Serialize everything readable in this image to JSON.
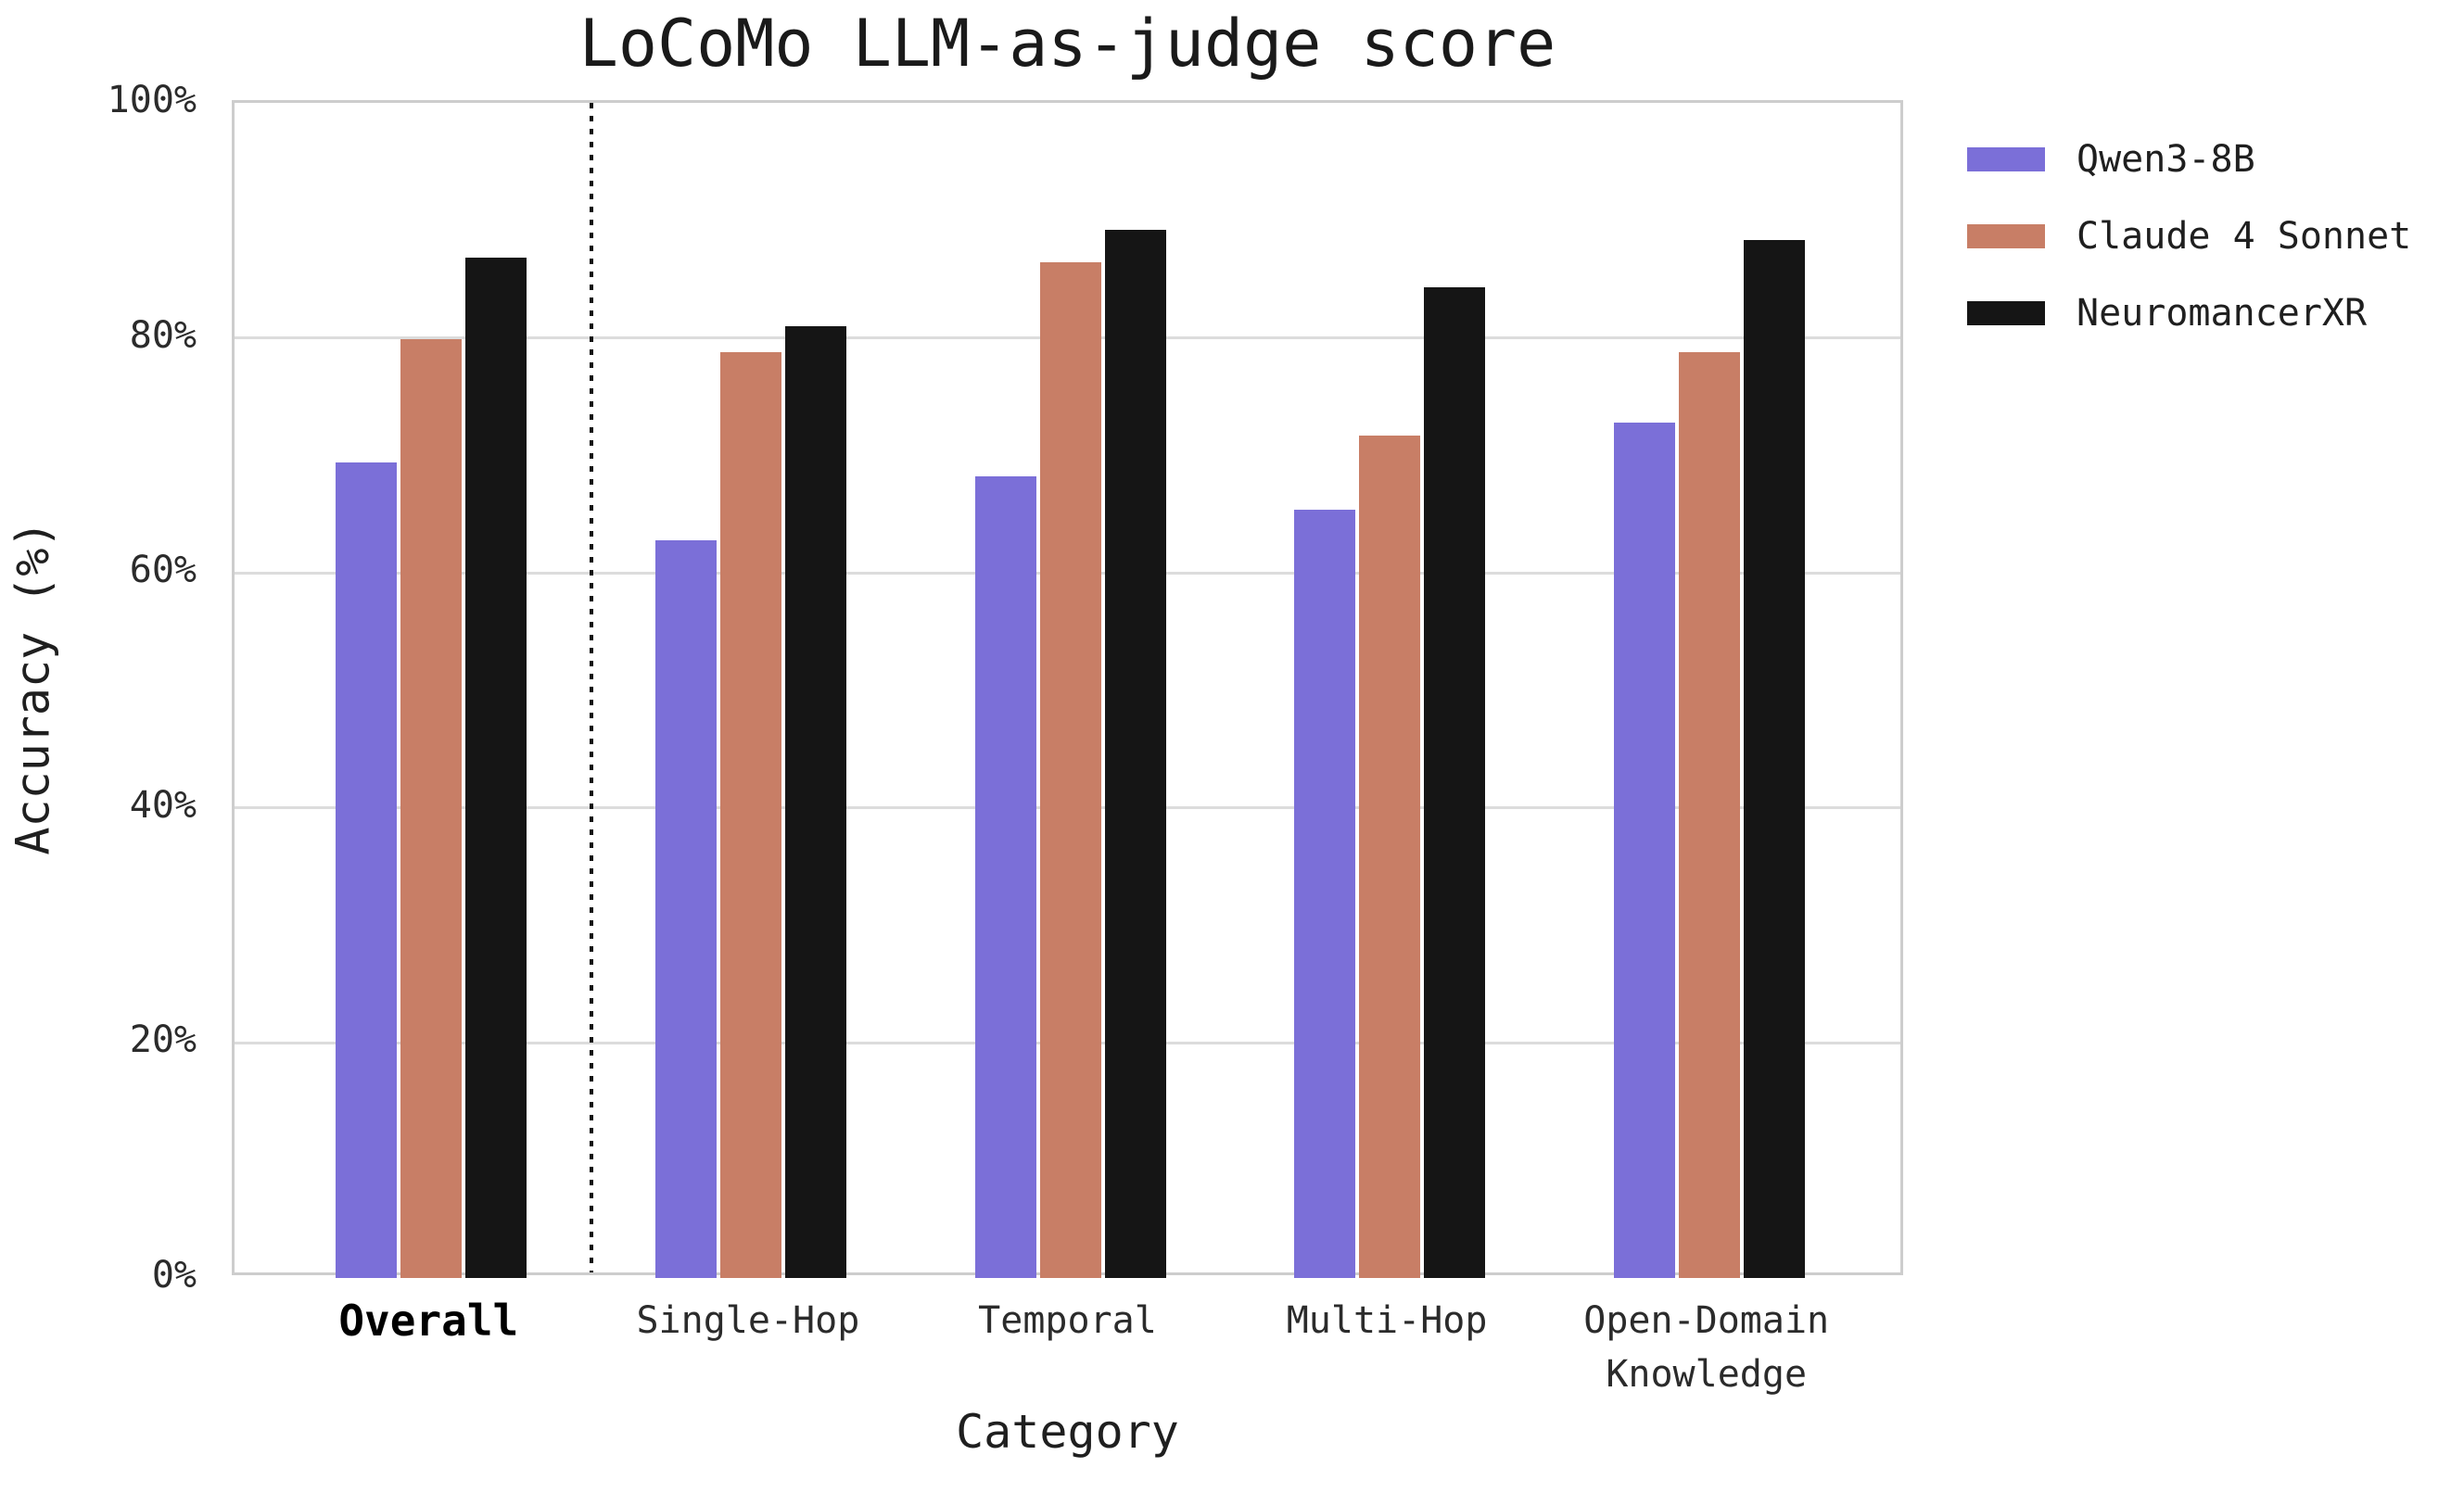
{
  "chart_data": {
    "type": "bar",
    "title": "LoCoMo LLM-as-judge score",
    "xlabel": "Category",
    "ylabel": "Accuracy (%)",
    "categories": [
      "Overall",
      "Single-Hop",
      "Temporal",
      "Multi-Hop",
      "Open-Domain\nKnowledge"
    ],
    "emphasized_category": "Overall",
    "divider_after_category_index": 0,
    "series": [
      {
        "name": "Qwen3-8B",
        "color": "#7B6FD8",
        "values": [
          69.4,
          62.8,
          68.2,
          65.4,
          72.8
        ]
      },
      {
        "name": "Claude 4 Sonnet",
        "color": "#C87E66",
        "values": [
          79.9,
          78.8,
          86.4,
          71.7,
          78.8
        ]
      },
      {
        "name": "NeuromancerXR",
        "color": "#151515",
        "values": [
          86.8,
          81.0,
          89.2,
          84.3,
          88.3
        ]
      }
    ],
    "ylim": [
      0,
      100
    ],
    "yticks": [
      0,
      20,
      40,
      60,
      80,
      100
    ],
    "ytick_labels": [
      "0%",
      "20%",
      "40%",
      "60%",
      "80%",
      "100%"
    ],
    "grid": "horizontal",
    "legend_position": "upper-right-outside"
  }
}
